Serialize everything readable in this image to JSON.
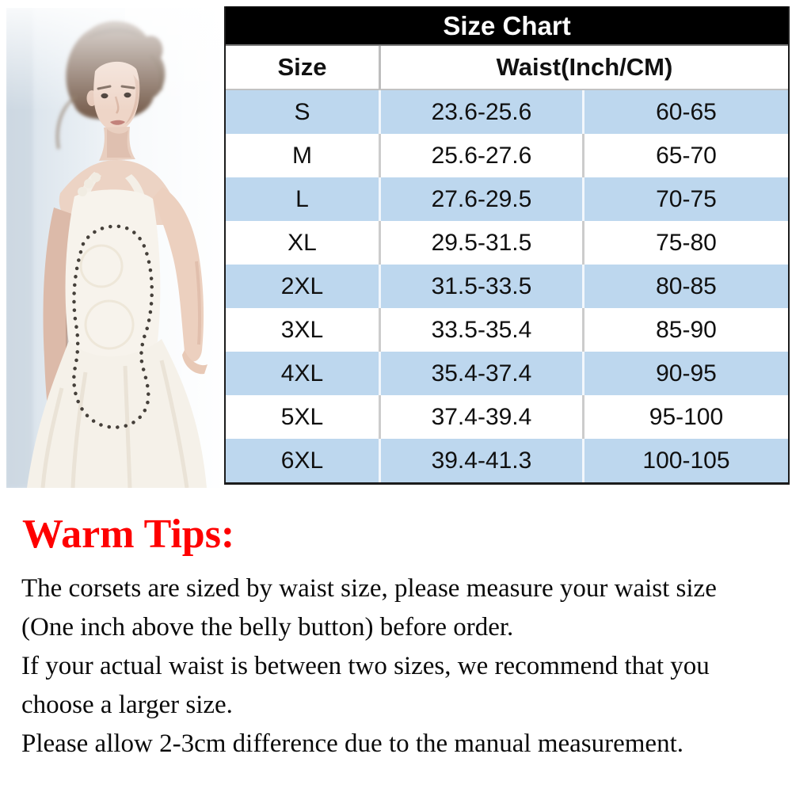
{
  "photo": {
    "description": "model wearing white beaded corset wedding dress"
  },
  "size_chart": {
    "title": "Size Chart",
    "columns": [
      "Size",
      "Waist(Inch/CM)"
    ],
    "rows": [
      {
        "size": "S",
        "inch": "23.6-25.6",
        "cm": "60-65"
      },
      {
        "size": "M",
        "inch": "25.6-27.6",
        "cm": "65-70"
      },
      {
        "size": "L",
        "inch": "27.6-29.5",
        "cm": "70-75"
      },
      {
        "size": "XL",
        "inch": "29.5-31.5",
        "cm": "75-80"
      },
      {
        "size": "2XL",
        "inch": "31.5-33.5",
        "cm": "80-85"
      },
      {
        "size": "3XL",
        "inch": "33.5-35.4",
        "cm": "85-90"
      },
      {
        "size": "4XL",
        "inch": "35.4-37.4",
        "cm": "90-95"
      },
      {
        "size": "5XL",
        "inch": "37.4-39.4",
        "cm": "95-100"
      },
      {
        "size": "6XL",
        "inch": "39.4-41.3",
        "cm": "100-105"
      }
    ]
  },
  "warm_tips": {
    "heading": "Warm Tips:",
    "lines": [
      "The corsets are sized by waist size, please measure your waist size",
      "(One inch above the belly button) before order.",
      "If your actual waist is between two sizes, we recommend that you",
      "choose a larger size.",
      "Please allow 2-3cm difference due to the manual measurement."
    ]
  },
  "colors": {
    "table_title_bg": "#000000",
    "table_title_text": "#FFFFFF",
    "row_alt_blue": "#BDD7EE",
    "tips_heading_red": "#FE0000",
    "body_text": "#0A0A0A"
  }
}
